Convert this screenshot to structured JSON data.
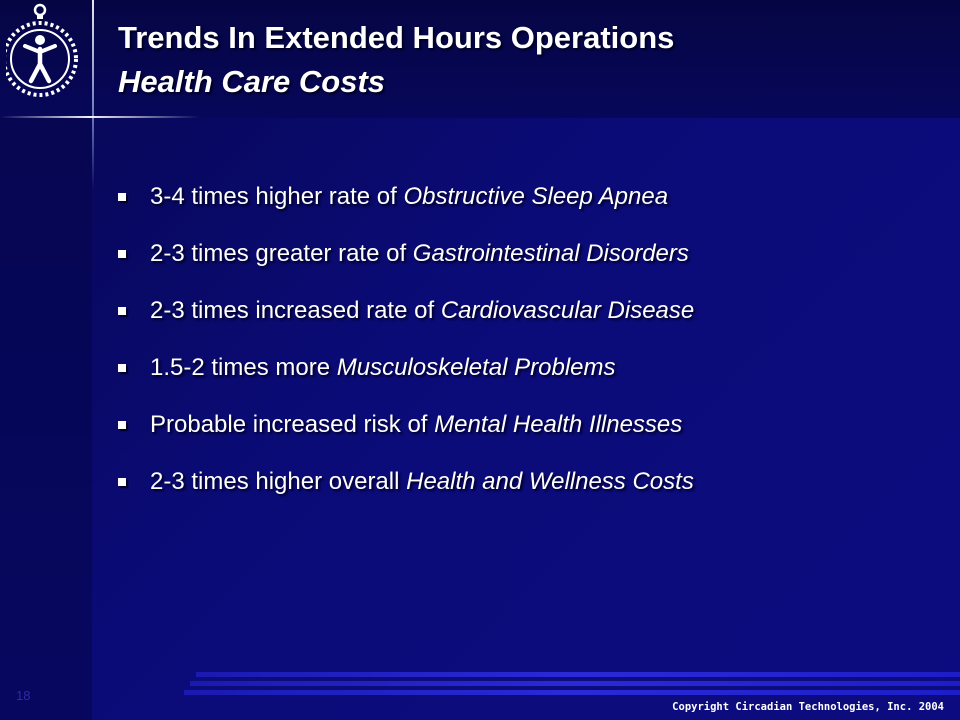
{
  "slide": {
    "title": "Trends In Extended Hours Operations",
    "subtitle": "Health Care Costs",
    "bullets": [
      {
        "pre": "3-4 times higher rate of ",
        "em": "Obstructive Sleep Apnea"
      },
      {
        "pre": "2-3 times greater rate of ",
        "em": "Gastrointestinal Disorders"
      },
      {
        "pre": "2-3 times increased rate of ",
        "em": "Cardiovascular Disease"
      },
      {
        "pre": "1.5-2 times more ",
        "em": "Musculoskeletal Problems"
      },
      {
        "pre": "Probable increased risk of ",
        "em": "Mental Health Illnesses"
      },
      {
        "pre": "2-3 times higher overall ",
        "em": "Health and Wellness Costs"
      }
    ],
    "page_number": "18",
    "copyright": "Copyright Circadian Technologies, Inc. 2004"
  },
  "logo": {
    "icon": "stopwatch-person-icon"
  },
  "colors": {
    "background": "#0b0b78",
    "header": "#050544",
    "text": "#ffffff",
    "stripe": "#2a2ad8"
  }
}
